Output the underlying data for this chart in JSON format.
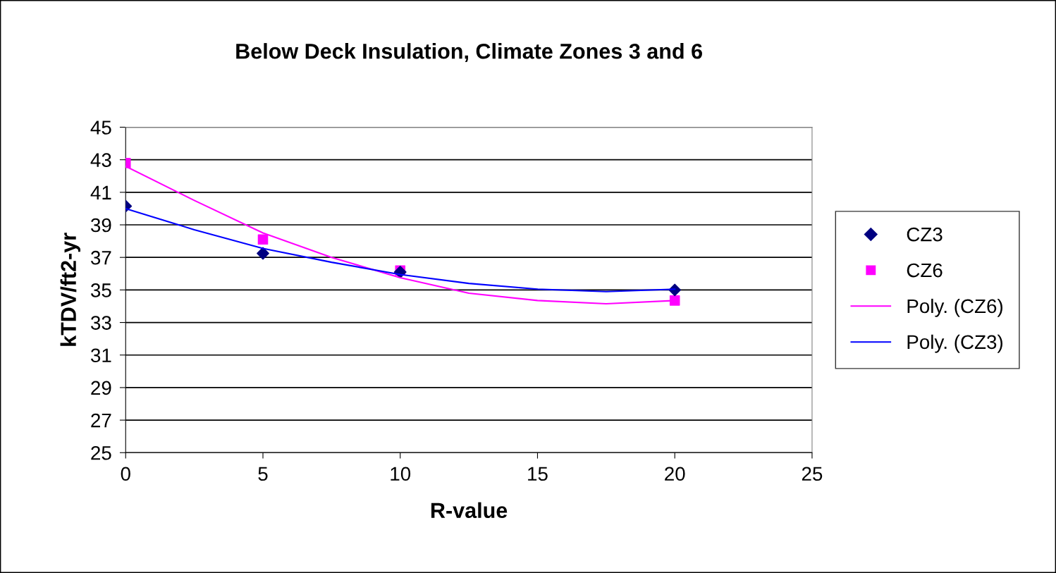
{
  "chart_data": {
    "type": "scatter",
    "title": "Below Deck Insulation, Climate Zones 3 and 6",
    "xlabel": "R-value",
    "ylabel": "kTDV/ft2-yr",
    "series": [
      {
        "name": "CZ3",
        "color": "#000080",
        "marker": "diamond",
        "x": [
          0,
          5,
          10,
          20
        ],
        "values": [
          40.15,
          37.25,
          36.1,
          35.0
        ]
      },
      {
        "name": "CZ6",
        "color": "#ff00ff",
        "marker": "square",
        "x": [
          0,
          5,
          10,
          20
        ],
        "values": [
          42.8,
          38.1,
          36.2,
          34.35
        ]
      },
      {
        "name": "Poly. (CZ6)",
        "type": "line",
        "color": "#ff00ff",
        "x": [
          0,
          2.5,
          5,
          7.5,
          10,
          12.5,
          15,
          17.5,
          20
        ],
        "values": [
          42.6,
          40.5,
          38.5,
          37.0,
          35.75,
          34.8,
          34.35,
          34.15,
          34.35
        ]
      },
      {
        "name": "Poly. (CZ3)",
        "type": "line",
        "color": "#0000ff",
        "x": [
          0,
          2.5,
          5,
          7.5,
          10,
          12.5,
          15,
          17.5,
          20
        ],
        "values": [
          40.0,
          38.7,
          37.55,
          36.7,
          35.95,
          35.4,
          35.05,
          34.9,
          35.05
        ]
      }
    ],
    "xlim": [
      0,
      25
    ],
    "xticks": [
      0,
      5,
      10,
      15,
      20,
      25
    ],
    "ylim": [
      25,
      45
    ],
    "yticks": [
      25,
      27,
      29,
      31,
      33,
      35,
      37,
      39,
      41,
      43,
      45
    ],
    "grid": "y",
    "legend": "right"
  }
}
